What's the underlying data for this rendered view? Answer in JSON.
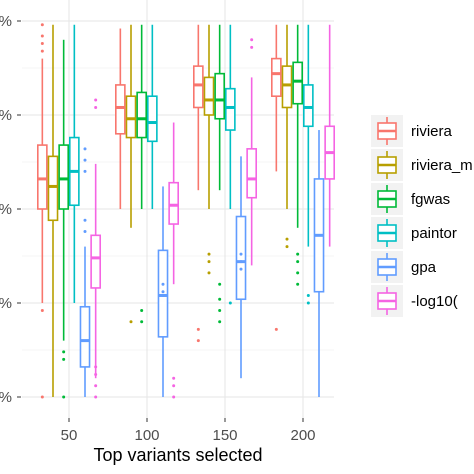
{
  "chart_data": {
    "type": "boxplot",
    "xlabel": "Top variants selected",
    "ylabel": "",
    "categories": [
      "50",
      "100",
      "150",
      "200"
    ],
    "y_tick_labels": [
      "%",
      "%",
      "%",
      "%",
      "%"
    ],
    "ylim": [
      -0.02,
      1.02
    ],
    "grid": true,
    "legend_position": "right",
    "series": [
      {
        "name": "riviera",
        "color": "#F8766D",
        "boxes": [
          {
            "min": 0.25,
            "q1": 0.5,
            "median": 0.58,
            "q3": 0.67,
            "max": 0.9,
            "outliers": [
              0.0,
              0.23,
              0.92,
              0.94,
              0.96,
              0.99
            ]
          },
          {
            "min": 0.5,
            "q1": 0.7,
            "median": 0.77,
            "q3": 0.83,
            "max": 0.98,
            "outliers": []
          },
          {
            "min": 0.55,
            "q1": 0.77,
            "median": 0.83,
            "q3": 0.88,
            "max": 0.99,
            "outliers": [
              0.15,
              0.18
            ]
          },
          {
            "min": 0.6,
            "q1": 0.8,
            "median": 0.86,
            "q3": 0.9,
            "max": 0.99,
            "outliers": [
              0.18
            ]
          }
        ]
      },
      {
        "name": "riviera_m",
        "color": "#B79F00",
        "boxes": [
          {
            "min": 0.0,
            "q1": 0.47,
            "median": 0.56,
            "q3": 0.64,
            "max": 0.99,
            "outliers": []
          },
          {
            "min": 0.45,
            "q1": 0.69,
            "median": 0.74,
            "q3": 0.8,
            "max": 0.99,
            "outliers": [
              0.2
            ]
          },
          {
            "min": 0.5,
            "q1": 0.75,
            "median": 0.79,
            "q3": 0.85,
            "max": 0.99,
            "outliers": [
              0.33,
              0.36,
              0.38
            ]
          },
          {
            "min": 0.5,
            "q1": 0.77,
            "median": 0.83,
            "q3": 0.88,
            "max": 0.99,
            "outliers": [
              0.4,
              0.42
            ]
          }
        ]
      },
      {
        "name": "fgwas",
        "color": "#00BA38",
        "boxes": [
          {
            "min": 0.15,
            "q1": 0.5,
            "median": 0.58,
            "q3": 0.67,
            "max": 0.95,
            "outliers": [
              0.0,
              0.1,
              0.12
            ]
          },
          {
            "min": 0.5,
            "q1": 0.69,
            "median": 0.74,
            "q3": 0.81,
            "max": 0.99,
            "outliers": [
              0.2,
              0.23
            ]
          },
          {
            "min": 0.55,
            "q1": 0.74,
            "median": 0.79,
            "q3": 0.86,
            "max": 0.99,
            "outliers": [
              0.2,
              0.23,
              0.26,
              0.3
            ]
          },
          {
            "min": 0.45,
            "q1": 0.78,
            "median": 0.84,
            "q3": 0.89,
            "max": 0.99,
            "outliers": [
              0.3,
              0.33,
              0.36,
              0.38
            ]
          }
        ]
      },
      {
        "name": "paintor",
        "color": "#00BFC4",
        "boxes": [
          {
            "min": 0.25,
            "q1": 0.51,
            "median": 0.6,
            "q3": 0.69,
            "max": 0.99,
            "outliers": []
          },
          {
            "min": 0.5,
            "q1": 0.68,
            "median": 0.73,
            "q3": 0.8,
            "max": 0.99,
            "outliers": []
          },
          {
            "min": 0.5,
            "q1": 0.71,
            "median": 0.77,
            "q3": 0.82,
            "max": 0.99,
            "outliers": [
              0.25
            ]
          },
          {
            "min": 0.4,
            "q1": 0.72,
            "median": 0.77,
            "q3": 0.83,
            "max": 0.99,
            "outliers": [
              0.25,
              0.27
            ]
          }
        ]
      },
      {
        "name": "gpa",
        "color": "#619CFF",
        "boxes": [
          {
            "min": 0.0,
            "q1": 0.08,
            "median": 0.15,
            "q3": 0.24,
            "max": 0.4,
            "outliers": [
              0.44,
              0.47,
              0.6,
              0.63,
              0.66
            ]
          },
          {
            "min": 0.0,
            "q1": 0.16,
            "median": 0.27,
            "q3": 0.39,
            "max": 0.56,
            "outliers": [
              0.27,
              0.28,
              0.3
            ]
          },
          {
            "min": 0.05,
            "q1": 0.26,
            "median": 0.36,
            "q3": 0.48,
            "max": 0.64,
            "outliers": [
              0.34,
              0.36,
              0.38
            ]
          },
          {
            "min": 0.0,
            "q1": 0.28,
            "median": 0.43,
            "q3": 0.58,
            "max": 0.71,
            "outliers": []
          }
        ]
      },
      {
        "name": "-log10(",
        "color": "#F564E3",
        "boxes": [
          {
            "min": 0.05,
            "q1": 0.29,
            "median": 0.37,
            "q3": 0.43,
            "max": 0.62,
            "outliers": [
              0.0,
              0.03,
              0.06,
              0.08,
              0.77,
              0.79
            ]
          },
          {
            "min": 0.3,
            "q1": 0.46,
            "median": 0.51,
            "q3": 0.57,
            "max": 0.73,
            "outliers": [
              0.0,
              0.03,
              0.05
            ]
          },
          {
            "min": 0.35,
            "q1": 0.53,
            "median": 0.58,
            "q3": 0.66,
            "max": 0.85,
            "outliers": [
              0.93,
              0.95
            ]
          },
          {
            "min": 0.4,
            "q1": 0.58,
            "median": 0.65,
            "q3": 0.72,
            "max": 0.99,
            "outliers": []
          }
        ]
      }
    ]
  }
}
